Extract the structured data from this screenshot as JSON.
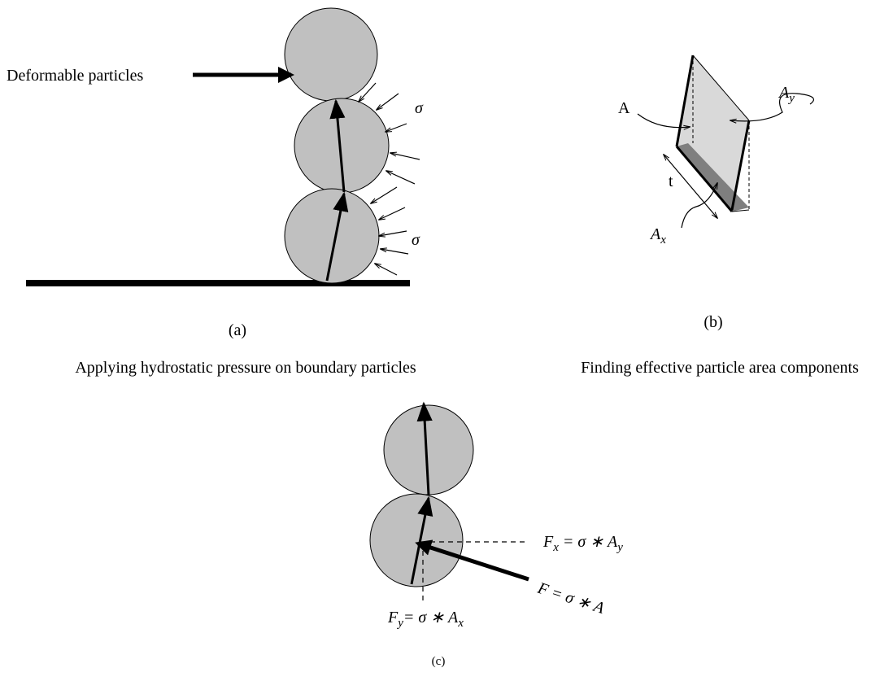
{
  "panel_a": {
    "pointer_label": "Deformable particles",
    "sigma_labels": [
      "σ",
      "σ"
    ],
    "tag": "(a)",
    "caption": "Applying hydrostatic pressure on boundary particles"
  },
  "panel_b": {
    "area_label": "A",
    "ay_label": [
      {
        "text": "A"
      },
      {
        "sub": "y"
      }
    ],
    "thickness_label": "t",
    "ax_label": [
      {
        "text": "A"
      },
      {
        "sub": "x"
      }
    ],
    "tag": "(b)",
    "caption": "Finding effective particle area components"
  },
  "panel_c": {
    "fx_label": [
      {
        "text": "F"
      },
      {
        "sub": "x"
      },
      {
        "text": " = σ ∗ A"
      },
      {
        "sub": "y"
      }
    ],
    "f_label": "F = σ ∗ A",
    "fy_label": [
      {
        "text": "F"
      },
      {
        "sub": "y"
      },
      {
        "text": "= σ ∗ A"
      },
      {
        "sub": "x"
      }
    ],
    "tag": "(c)"
  }
}
